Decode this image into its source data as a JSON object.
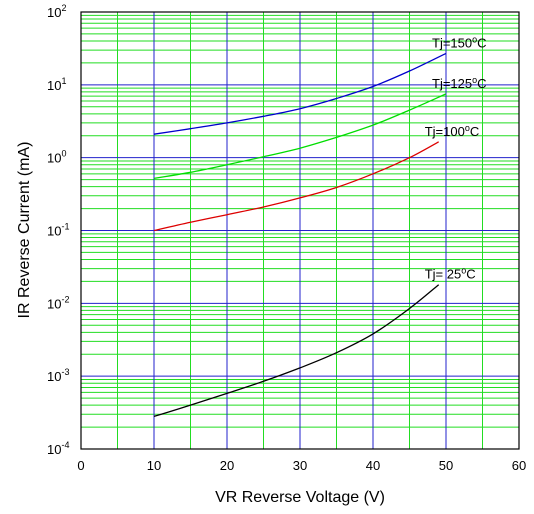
{
  "chart_data": {
    "type": "line",
    "title": "",
    "xlabel": "VR   Reverse Voltage   (V)",
    "ylabel": "IR   Reverse Current   (mA)",
    "xlim": [
      0,
      60
    ],
    "ylim": [
      0.0001,
      100
    ],
    "yscale": "log",
    "grid": true,
    "x_ticks": [
      "0",
      "10",
      "20",
      "30",
      "40",
      "50",
      "60"
    ],
    "y_ticks": [
      {
        "base": "10",
        "exp": "-4"
      },
      {
        "base": "10",
        "exp": "-3"
      },
      {
        "base": "10",
        "exp": "-2"
      },
      {
        "base": "10",
        "exp": "-1"
      },
      {
        "base": "10",
        "exp": "0"
      },
      {
        "base": "10",
        "exp": "1"
      },
      {
        "base": "10",
        "exp": "2"
      }
    ],
    "colors": {
      "minor_grid": "#22dd22",
      "major_grid": "#2222cc",
      "frame": "#000000"
    },
    "series": [
      {
        "name_prefix": "Tj=150",
        "name_sup": "o",
        "name_suffix": "C",
        "color": "#0000cc",
        "x": [
          10,
          15,
          20,
          25,
          30,
          35,
          40,
          45,
          50
        ],
        "y": [
          2.1,
          2.5,
          3.0,
          3.7,
          4.7,
          6.5,
          9.5,
          15.5,
          27
        ]
      },
      {
        "name_prefix": "Tj=125",
        "name_sup": "o",
        "name_suffix": "C",
        "color": "#00dd00",
        "x": [
          10,
          15,
          20,
          25,
          30,
          35,
          40,
          45,
          50
        ],
        "y": [
          0.52,
          0.63,
          0.8,
          1.03,
          1.35,
          1.9,
          2.8,
          4.5,
          7.5
        ]
      },
      {
        "name_prefix": "Tj=100",
        "name_sup": "o",
        "name_suffix": "C",
        "color": "#dd0000",
        "x": [
          10,
          15,
          20,
          25,
          30,
          35,
          40,
          45,
          49
        ],
        "y": [
          0.1,
          0.13,
          0.165,
          0.21,
          0.28,
          0.39,
          0.6,
          1.0,
          1.65
        ]
      },
      {
        "name_prefix": "Tj= 25",
        "name_sup": "o",
        "name_suffix": "C",
        "color": "#000000",
        "x": [
          10,
          15,
          20,
          25,
          30,
          35,
          40,
          45,
          49
        ],
        "y": [
          0.00028,
          0.0004,
          0.00058,
          0.00085,
          0.0013,
          0.0021,
          0.0038,
          0.0085,
          0.018
        ]
      }
    ]
  }
}
